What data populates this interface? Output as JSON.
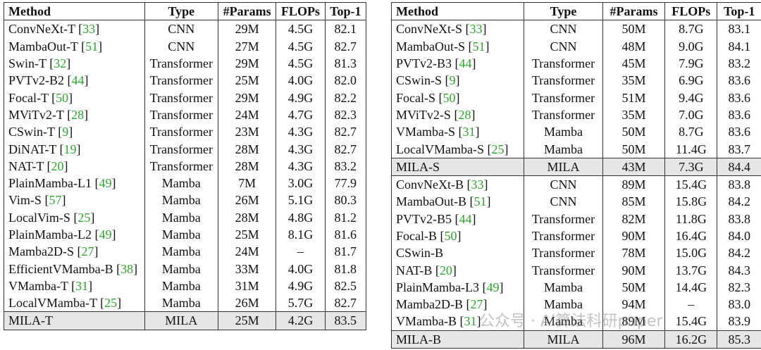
{
  "tables": [
    {
      "header": [
        "Method",
        "Type",
        "#Params",
        "FLOPs",
        "Top-1"
      ],
      "rows": [
        [
          "ConvNeXt-T",
          "[33]",
          "CNN",
          "29M",
          "4.5G",
          "82.1"
        ],
        [
          "MambaOut-T",
          "[51]",
          "CNN",
          "27M",
          "4.5G",
          "82.7"
        ],
        [
          "Swin-T",
          "[32]",
          "Transformer",
          "29M",
          "4.5G",
          "81.3"
        ],
        [
          "PVTv2-B2",
          "[44]",
          "Transformer",
          "25M",
          "4.0G",
          "82.0"
        ],
        [
          "Focal-T",
          "[50]",
          "Transformer",
          "29M",
          "4.9G",
          "82.2"
        ],
        [
          "MViTv2-T",
          "[28]",
          "Transformer",
          "24M",
          "4.7G",
          "82.3"
        ],
        [
          "CSwin-T",
          "[9]",
          "Transformer",
          "23M",
          "4.3G",
          "82.7"
        ],
        [
          "DiNAT-T",
          "[19]",
          "Transformer",
          "28M",
          "4.3G",
          "82.7"
        ],
        [
          "NAT-T",
          "[20]",
          "Transformer",
          "28M",
          "4.3G",
          "83.2"
        ],
        [
          "PlainMamba-L1",
          "[49]",
          "Mamba",
          "7M",
          "3.0G",
          "77.9"
        ],
        [
          "Vim-S",
          "[57]",
          "Mamba",
          "26M",
          "5.1G",
          "80.3"
        ],
        [
          "LocalVim-S",
          "[25]",
          "Mamba",
          "28M",
          "4.8G",
          "81.2"
        ],
        [
          "PlainMamba-L2",
          "[49]",
          "Mamba",
          "25M",
          "8.1G",
          "81.6"
        ],
        [
          "Mamba2D-S",
          "[27]",
          "Mamba",
          "24M",
          "–",
          "81.7"
        ],
        [
          "EfficientVMamba-B",
          "[38]",
          "Mamba",
          "33M",
          "4.0G",
          "81.8"
        ],
        [
          "VMamba-T",
          "[31]",
          "Mamba",
          "31M",
          "4.9G",
          "82.5"
        ],
        [
          "LocalVMamba-T",
          "[25]",
          "Mamba",
          "26M",
          "5.7G",
          "82.7"
        ],
        [
          "MILA-T",
          null,
          "MILA",
          "25M",
          "4.2G",
          "83.5"
        ]
      ]
    },
    {
      "header": [
        "Method",
        "Type",
        "#Params",
        "FLOPs",
        "Top-1"
      ],
      "rows": [
        [
          "ConvNeXt-S",
          "[33]",
          "CNN",
          "50M",
          "8.7G",
          "83.1"
        ],
        [
          "MambaOut-S",
          "[51]",
          "CNN",
          "48M",
          "9.0G",
          "84.1"
        ],
        [
          "PVTv2-B3",
          "[44]",
          "Transformer",
          "45M",
          "7.9G",
          "83.2"
        ],
        [
          "CSwin-S",
          "[9]",
          "Transformer",
          "35M",
          "6.9G",
          "83.6"
        ],
        [
          "Focal-S",
          "[50]",
          "Transformer",
          "51M",
          "9.4G",
          "83.6"
        ],
        [
          "MViTv2-S",
          "[28]",
          "Transformer",
          "35M",
          "7.0G",
          "83.6"
        ],
        [
          "VMamba-S",
          "[31]",
          "Mamba",
          "50M",
          "8.7G",
          "83.6"
        ],
        [
          "LocalVMamba-S",
          "[25]",
          "Mamba",
          "50M",
          "11.4G",
          "83.7"
        ],
        [
          "MILA-S",
          null,
          "MILA",
          "43M",
          "7.3G",
          "84.4"
        ],
        [
          "ConvNeXt-B",
          "[33]",
          "CNN",
          "89M",
          "15.4G",
          "83.8"
        ],
        [
          "MambaOut-B",
          "[51]",
          "CNN",
          "85M",
          "15.8G",
          "84.2"
        ],
        [
          "PVTv2-B5",
          "[44]",
          "Transformer",
          "82M",
          "11.8G",
          "83.8"
        ],
        [
          "Focal-B",
          "[50]",
          "Transformer",
          "90M",
          "16.4G",
          "84.0"
        ],
        [
          "CSwin-B",
          null,
          "Transformer",
          "78M",
          "15.0G",
          "84.2"
        ],
        [
          "NAT-B",
          "[20]",
          "Transformer",
          "90M",
          "13.7G",
          "84.3"
        ],
        [
          "PlainMamba-L3",
          "[49]",
          "Mamba",
          "50M",
          "14.4G",
          "82.3"
        ],
        [
          "Mamba2D-B",
          "[27]",
          "Mamba",
          "94M",
          "–",
          "83.0"
        ],
        [
          "VMamba-B",
          "[31]",
          "Mamba",
          "89M",
          "15.4G",
          "83.9"
        ],
        [
          "MILA-B",
          null,
          "MILA",
          "96M",
          "16.2G",
          "85.3"
        ]
      ]
    }
  ],
  "watermark": "公众号 · AI算法科研paper"
}
